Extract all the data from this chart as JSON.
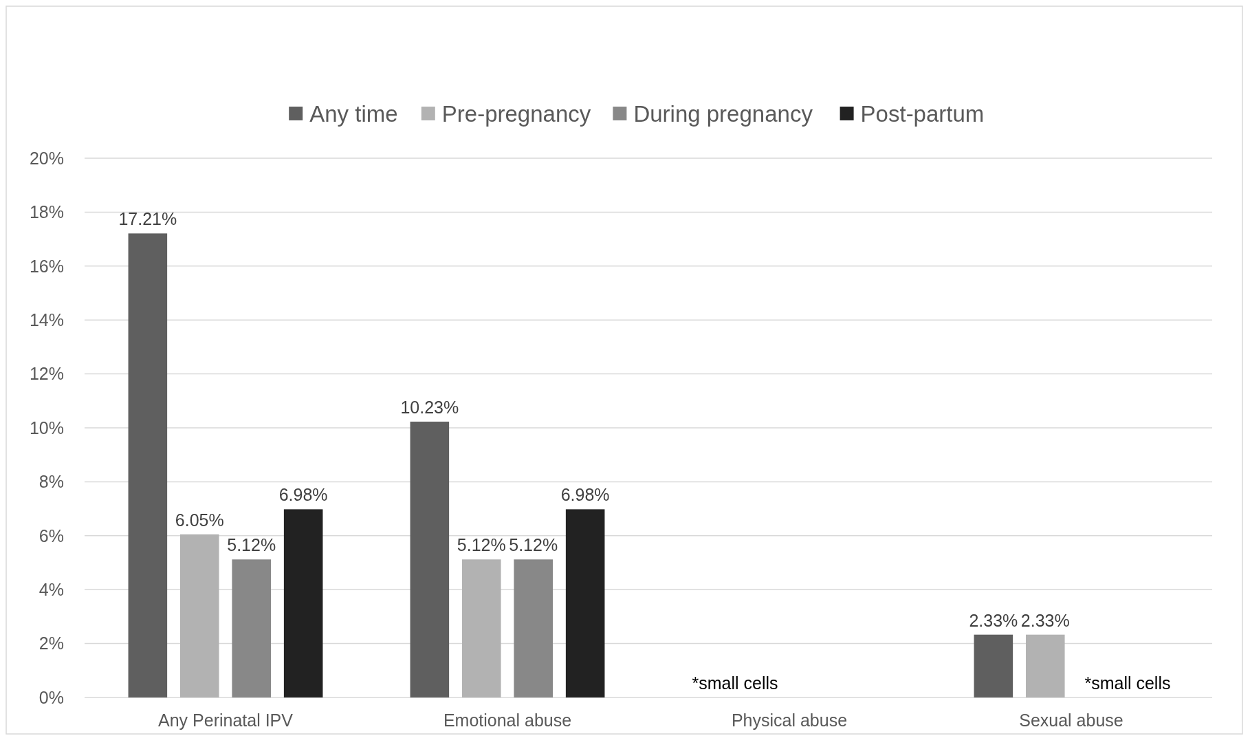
{
  "chart_data": {
    "type": "bar",
    "categories": [
      "Any Perinatal IPV",
      "Emotional abuse",
      "Physical abuse",
      "Sexual abuse"
    ],
    "series": [
      {
        "name": "Any time",
        "color": "#5f5f5f",
        "values": [
          17.21,
          10.23,
          null,
          2.33
        ],
        "value_labels": [
          "17.21%",
          "10.23%",
          null,
          "2.33%"
        ]
      },
      {
        "name": "Pre-pregnancy",
        "color": "#b2b2b2",
        "values": [
          6.05,
          5.12,
          null,
          2.33
        ],
        "value_labels": [
          "6.05%",
          "5.12%",
          null,
          "2.33%"
        ]
      },
      {
        "name": "During pregnancy",
        "color": "#888888",
        "values": [
          5.12,
          5.12,
          null,
          null
        ],
        "value_labels": [
          "5.12%",
          "5.12%",
          null,
          null
        ]
      },
      {
        "name": "Post-partum",
        "color": "#222222",
        "values": [
          6.98,
          6.98,
          null,
          null
        ],
        "value_labels": [
          "6.98%",
          "6.98%",
          null,
          null
        ]
      }
    ],
    "ylim": [
      0,
      20
    ],
    "yticks": [
      {
        "value": 0,
        "label": "0%"
      },
      {
        "value": 2,
        "label": "2%"
      },
      {
        "value": 4,
        "label": "4%"
      },
      {
        "value": 6,
        "label": "6%"
      },
      {
        "value": 8,
        "label": "8%"
      },
      {
        "value": 10,
        "label": "10%"
      },
      {
        "value": 12,
        "label": "12%"
      },
      {
        "value": 14,
        "label": "14%"
      },
      {
        "value": 16,
        "label": "16%"
      },
      {
        "value": 18,
        "label": "18%"
      },
      {
        "value": 20,
        "label": "20%"
      }
    ],
    "grid": "y",
    "legend": "top",
    "annotations": [
      "*small cells",
      "*small cells"
    ]
  }
}
